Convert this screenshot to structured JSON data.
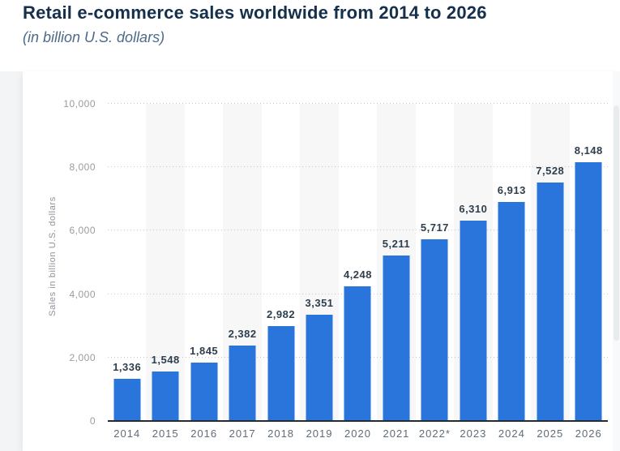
{
  "header": {
    "title": "Retail e-commerce sales worldwide from 2014 to 2026",
    "subtitle": "(in billion U.S. dollars)"
  },
  "chart_data": {
    "type": "bar",
    "title": "Retail e-commerce sales worldwide from 2014 to 2026",
    "subtitle": "(in billion U.S. dollars)",
    "categories": [
      "2014",
      "2015",
      "2016",
      "2017",
      "2018",
      "2019",
      "2020",
      "2021",
      "2022*",
      "2023",
      "2024",
      "2025",
      "2026"
    ],
    "values": [
      1336,
      1548,
      1845,
      2382,
      2982,
      3351,
      4248,
      5211,
      5717,
      6310,
      6913,
      7528,
      8148
    ],
    "value_labels": [
      "1,336",
      "1,548",
      "1,845",
      "2,382",
      "2,982",
      "3,351",
      "4,248",
      "5,211",
      "5,717",
      "6,310",
      "6,913",
      "7,528",
      "8,148"
    ],
    "xlabel": "",
    "ylabel": "Sales in billion U.S. dollars",
    "ylim": [
      0,
      10000
    ],
    "yticks": [
      {
        "value": 0,
        "label": "0"
      },
      {
        "value": 2000,
        "label": "2,000"
      },
      {
        "value": 4000,
        "label": "4,000"
      },
      {
        "value": 6000,
        "label": "6,000"
      },
      {
        "value": 8000,
        "label": "8,000"
      },
      {
        "value": 10000,
        "label": "10,000"
      }
    ],
    "grid": "horizontal-dotted",
    "legend": "none",
    "banded_categories": [
      "2015",
      "2017",
      "2019",
      "2021",
      "2023",
      "2025"
    ],
    "bar_color": "#2a75db",
    "band_color": "#f7f7f8"
  },
  "colors": {
    "title_text": "#15304c",
    "subtitle_text": "#4d6a88",
    "bar": "#2a75db",
    "band": "#f7f7f8",
    "value_label_text": "#2e3e4d",
    "y_tick_text": "#9b9b9b",
    "x_tick_text": "#5f6b78",
    "axis_line": "#242b31",
    "gridline": "#c8c8c8",
    "page_strip": "#f3f4f6",
    "card_background": "#ffffff"
  }
}
